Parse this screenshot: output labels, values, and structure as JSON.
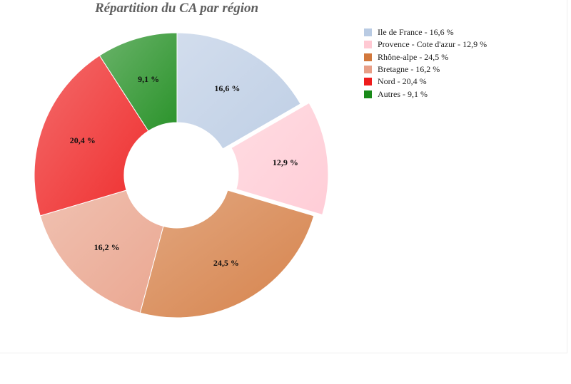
{
  "chart_data": {
    "type": "pie",
    "title": "Répartition du CA par région",
    "categories": [
      "Ile de France",
      "Provence - Cote d'azur",
      "Rhône-alpe",
      "Bretagne",
      "Nord",
      "Autres"
    ],
    "values": [
      16.6,
      12.9,
      24.5,
      16.2,
      20.4,
      9.1
    ],
    "data_labels": [
      "16,6 %",
      "12,9 %",
      "24,5 %",
      "16,2 %",
      "20,4 %",
      "9,1 %"
    ],
    "legend_labels": [
      "Ile de France - 16,6 %",
      "Provence - Cote d'azur - 12,9 %",
      "Rhône-alpe - 24,5 %",
      "Bretagne - 16,2 %",
      "Nord - 20,4 %",
      "Autres - 9,1 %"
    ],
    "colors": [
      "#b9cbe3",
      "#ffc9d3",
      "#d2783c",
      "#e89f87",
      "#ee1c1c",
      "#198a19"
    ],
    "exploded": [
      false,
      true,
      false,
      false,
      false,
      false
    ],
    "donut": true,
    "legend": "top-right"
  }
}
